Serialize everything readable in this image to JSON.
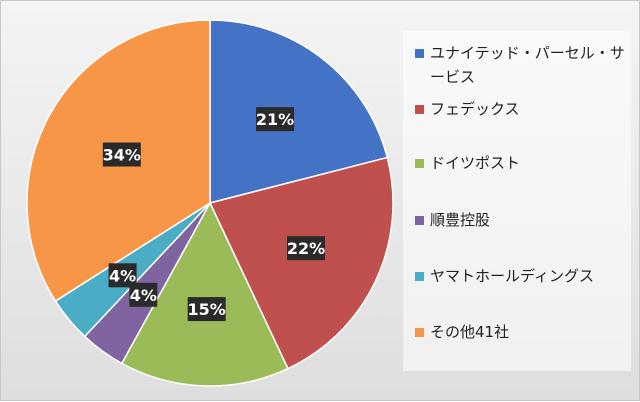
{
  "chart_data": {
    "type": "pie",
    "categories": [
      "ユナイテッド・パーセル・サービス",
      "フェデックス",
      "ドイツポスト",
      "順豊控股",
      "ヤマトホールディングス",
      "その他41社"
    ],
    "values": [
      21,
      22,
      15,
      4,
      4,
      34
    ],
    "data_labels": [
      "21%",
      "22%",
      "15%",
      "4%",
      "4%",
      "34%"
    ],
    "colors": [
      "#4472C4",
      "#C0504D",
      "#9BBB59",
      "#8064A2",
      "#4BACC6",
      "#F79646"
    ],
    "legend_position": "right"
  },
  "legend": {
    "items": [
      {
        "label": "ユナイテッド・パーセル・サービス",
        "color": "#4472C4"
      },
      {
        "label": "フェデックス",
        "color": "#C0504D"
      },
      {
        "label": "ドイツポスト",
        "color": "#9BBB59"
      },
      {
        "label": "順豊控股",
        "color": "#8064A2"
      },
      {
        "label": "ヤマトホールディングス",
        "color": "#4BACC6"
      },
      {
        "label": "その他41社",
        "color": "#F79646"
      }
    ]
  }
}
